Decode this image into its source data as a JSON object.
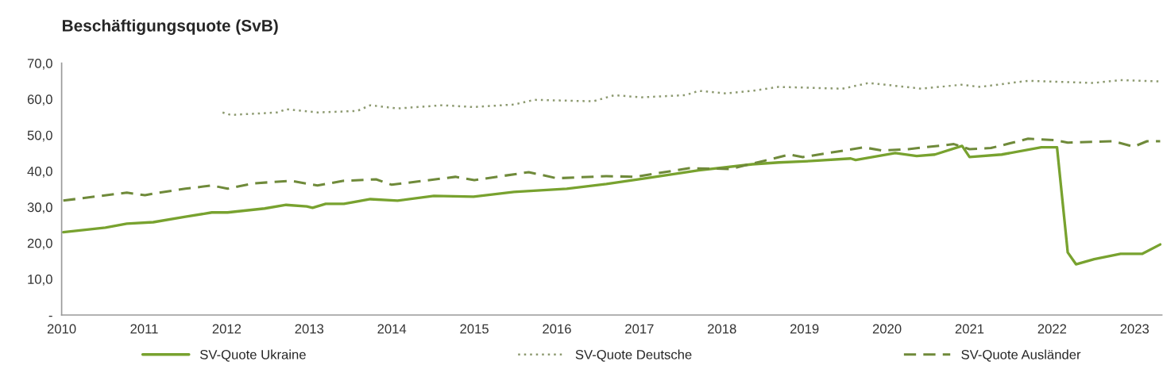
{
  "chart_data": {
    "type": "line",
    "title": "Beschäftigungsquote (SvB)",
    "xlim": [
      2010,
      2023.33
    ],
    "xticks": [
      2010,
      2011,
      2012,
      2013,
      2014,
      2015,
      2016,
      2017,
      2018,
      2019,
      2020,
      2021,
      2022,
      2023
    ],
    "ylim": [
      0,
      70
    ],
    "yticks": [
      {
        "value": 0,
        "label": "-"
      },
      {
        "value": 10,
        "label": "10,0"
      },
      {
        "value": 20,
        "label": "20,0"
      },
      {
        "value": 30,
        "label": "30,0"
      },
      {
        "value": 40,
        "label": "40,0"
      },
      {
        "value": 50,
        "label": "50,0"
      },
      {
        "value": 60,
        "label": "60,0"
      },
      {
        "value": 70,
        "label": "70,0"
      }
    ],
    "grid": false,
    "legend": "bottom",
    "series": [
      {
        "name": "SV-Quote Ukraine",
        "color": "#78a22f",
        "line_style": "solid",
        "x": [
          2010.02,
          2010.53,
          2010.79,
          2011.11,
          2011.5,
          2011.82,
          2012.01,
          2012.46,
          2012.72,
          2012.97,
          2013.04,
          2013.2,
          2013.42,
          2013.74,
          2014.07,
          2014.51,
          2014.99,
          2015.48,
          2016.12,
          2016.6,
          2017.08,
          2017.72,
          2018.37,
          2018.69,
          2019.08,
          2019.56,
          2019.62,
          2020.1,
          2020.36,
          2020.58,
          2020.91,
          2021.0,
          2021.39,
          2021.87,
          2022.06,
          2022.19,
          2022.29,
          2022.51,
          2022.83,
          2023.09,
          2023.31
        ],
        "values": [
          23.0,
          24.3,
          25.4,
          25.8,
          27.3,
          28.5,
          28.5,
          29.6,
          30.6,
          30.2,
          29.8,
          30.9,
          30.9,
          32.2,
          31.8,
          33.1,
          32.9,
          34.2,
          35.1,
          36.4,
          38.0,
          40.2,
          41.9,
          42.4,
          42.8,
          43.5,
          43.1,
          45.0,
          44.2,
          44.6,
          47.0,
          43.9,
          44.6,
          46.6,
          46.6,
          17.4,
          14.1,
          15.5,
          17.0,
          17.0,
          19.6
        ]
      },
      {
        "name": "SV-Quote Deutsche",
        "color": "#8d9a70",
        "line_style": "dotted",
        "x": [
          2011.95,
          2012.05,
          2012.62,
          2012.72,
          2013.1,
          2013.58,
          2013.74,
          2014.07,
          2014.61,
          2014.99,
          2015.48,
          2015.73,
          2016.44,
          2016.7,
          2017.02,
          2017.56,
          2017.72,
          2018.05,
          2018.37,
          2018.69,
          2019.46,
          2019.78,
          2020.42,
          2020.9,
          2021.13,
          2021.71,
          2022.51,
          2022.83,
          2023.31
        ],
        "values": [
          56.3,
          55.6,
          56.3,
          57.2,
          56.3,
          56.7,
          58.3,
          57.4,
          58.3,
          57.8,
          58.5,
          59.8,
          59.4,
          61.1,
          60.5,
          61.1,
          62.3,
          61.6,
          62.3,
          63.4,
          62.9,
          64.5,
          62.9,
          64.0,
          63.4,
          65.1,
          64.5,
          65.3,
          64.9
        ]
      },
      {
        "name": "SV-Quote Ausländer",
        "color": "#6f8a3a",
        "line_style": "dashed",
        "x": [
          2010.02,
          2010.47,
          2010.79,
          2011.01,
          2011.18,
          2011.5,
          2011.82,
          2012.01,
          2012.33,
          2012.78,
          2013.1,
          2013.42,
          2013.81,
          2014.0,
          2014.77,
          2015.0,
          2015.66,
          2016.0,
          2016.6,
          2016.95,
          2017.6,
          2018.1,
          2018.5,
          2018.82,
          2018.98,
          2019.72,
          2019.94,
          2020.26,
          2020.81,
          2021.0,
          2021.26,
          2021.71,
          2022.03,
          2022.19,
          2022.74,
          2022.99,
          2023.15,
          2023.31
        ],
        "values": [
          31.8,
          33.1,
          34.0,
          33.3,
          34.0,
          35.1,
          36.0,
          35.1,
          36.6,
          37.3,
          36.0,
          37.3,
          37.7,
          36.2,
          38.4,
          37.5,
          39.7,
          38.0,
          38.6,
          38.4,
          40.8,
          40.6,
          42.8,
          44.6,
          43.9,
          46.6,
          45.7,
          46.1,
          47.5,
          46.1,
          46.4,
          49.0,
          48.6,
          47.9,
          48.3,
          46.8,
          48.3,
          48.3
        ]
      }
    ]
  }
}
